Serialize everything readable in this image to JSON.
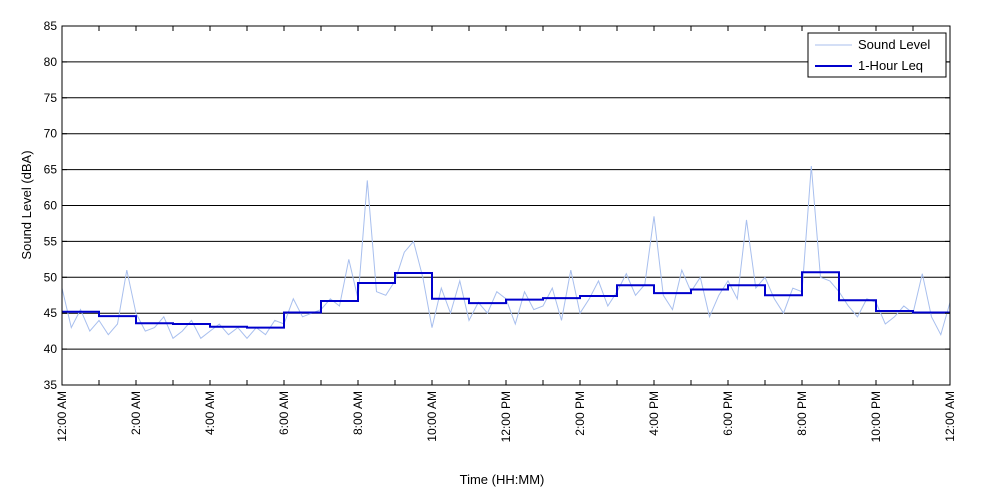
{
  "chart_data": {
    "type": "line",
    "title": "",
    "xlabel": "Time (HH:MM)",
    "ylabel": "Sound Level (dBA)",
    "xlim": [
      0,
      24
    ],
    "ylim": [
      35,
      85
    ],
    "yticks": [
      35,
      40,
      45,
      50,
      55,
      60,
      65,
      70,
      75,
      80,
      85
    ],
    "x_tick_hours": [
      0,
      2,
      4,
      6,
      8,
      10,
      12,
      14,
      16,
      18,
      20,
      22,
      24
    ],
    "x_tick_labels": [
      "12:00 AM",
      "2:00 AM",
      "4:00 AM",
      "6:00 AM",
      "8:00 AM",
      "10:00 AM",
      "12:00 PM",
      "2:00 PM",
      "4:00 PM",
      "6:00 PM",
      "8:00 PM",
      "10:00 PM",
      "12:00 AM"
    ],
    "x_minor_step_hours": 1,
    "grid": "horizontal",
    "legend_position": "top-right",
    "series": [
      {
        "name": "Sound Level",
        "kind": "raw",
        "color": "#a8bfee",
        "x": [
          0,
          0.25,
          0.5,
          0.75,
          1,
          1.25,
          1.5,
          1.75,
          2,
          2.25,
          2.5,
          2.75,
          3,
          3.25,
          3.5,
          3.75,
          4,
          4.25,
          4.5,
          4.75,
          5,
          5.25,
          5.5,
          5.75,
          6,
          6.25,
          6.5,
          6.75,
          7,
          7.25,
          7.5,
          7.75,
          8,
          8.25,
          8.5,
          8.75,
          9,
          9.25,
          9.5,
          9.75,
          10,
          10.25,
          10.5,
          10.75,
          11,
          11.25,
          11.5,
          11.75,
          12,
          12.25,
          12.5,
          12.75,
          13,
          13.25,
          13.5,
          13.75,
          14,
          14.25,
          14.5,
          14.75,
          15,
          15.25,
          15.5,
          15.75,
          16,
          16.25,
          16.5,
          16.75,
          17,
          17.25,
          17.5,
          17.75,
          18,
          18.25,
          18.5,
          18.75,
          19,
          19.25,
          19.5,
          19.75,
          20,
          20.25,
          20.5,
          20.75,
          21,
          21.25,
          21.5,
          21.75,
          22,
          22.25,
          22.5,
          22.75,
          23,
          23.25,
          23.5,
          23.75,
          24
        ],
        "y": [
          48.5,
          43.0,
          45.5,
          42.5,
          44.0,
          42.0,
          43.5,
          51.0,
          45.0,
          42.5,
          43.0,
          44.5,
          41.5,
          42.5,
          44.0,
          41.5,
          42.5,
          43.5,
          42.0,
          43.0,
          41.5,
          43.0,
          42.0,
          44.0,
          43.5,
          47.0,
          44.5,
          45.0,
          45.5,
          47.0,
          46.0,
          52.5,
          47.0,
          63.5,
          48.0,
          47.5,
          49.5,
          53.5,
          55.0,
          50.0,
          43.0,
          48.5,
          45.0,
          49.5,
          44.0,
          46.5,
          45.0,
          48.0,
          47.0,
          43.5,
          48.0,
          45.5,
          46.0,
          48.5,
          44.0,
          51.0,
          45.0,
          47.0,
          49.5,
          46.0,
          48.0,
          50.5,
          47.5,
          49.0,
          58.5,
          47.5,
          45.5,
          51.0,
          48.0,
          50.0,
          44.5,
          47.5,
          49.5,
          47.0,
          58.0,
          48.5,
          50.0,
          47.0,
          45.0,
          48.5,
          48.0,
          65.5,
          50.0,
          49.5,
          48.0,
          46.0,
          44.5,
          47.0,
          46.5,
          43.5,
          44.5,
          46.0,
          45.0,
          50.5,
          44.5,
          42.0,
          46.5
        ]
      },
      {
        "name": "1-Hour Leq",
        "kind": "step",
        "color": "#0000cc",
        "hour_start": [
          0,
          1,
          2,
          3,
          4,
          5,
          6,
          7,
          8,
          9,
          10,
          11,
          12,
          13,
          14,
          15,
          16,
          17,
          18,
          19,
          20,
          21,
          22,
          23
        ],
        "values": [
          45.2,
          44.6,
          43.6,
          43.5,
          43.1,
          43.0,
          45.1,
          46.7,
          49.2,
          50.6,
          47.0,
          46.4,
          46.9,
          47.1,
          47.4,
          48.9,
          47.8,
          48.3,
          48.9,
          47.5,
          50.7,
          46.8,
          45.3,
          45.1
        ]
      }
    ]
  }
}
